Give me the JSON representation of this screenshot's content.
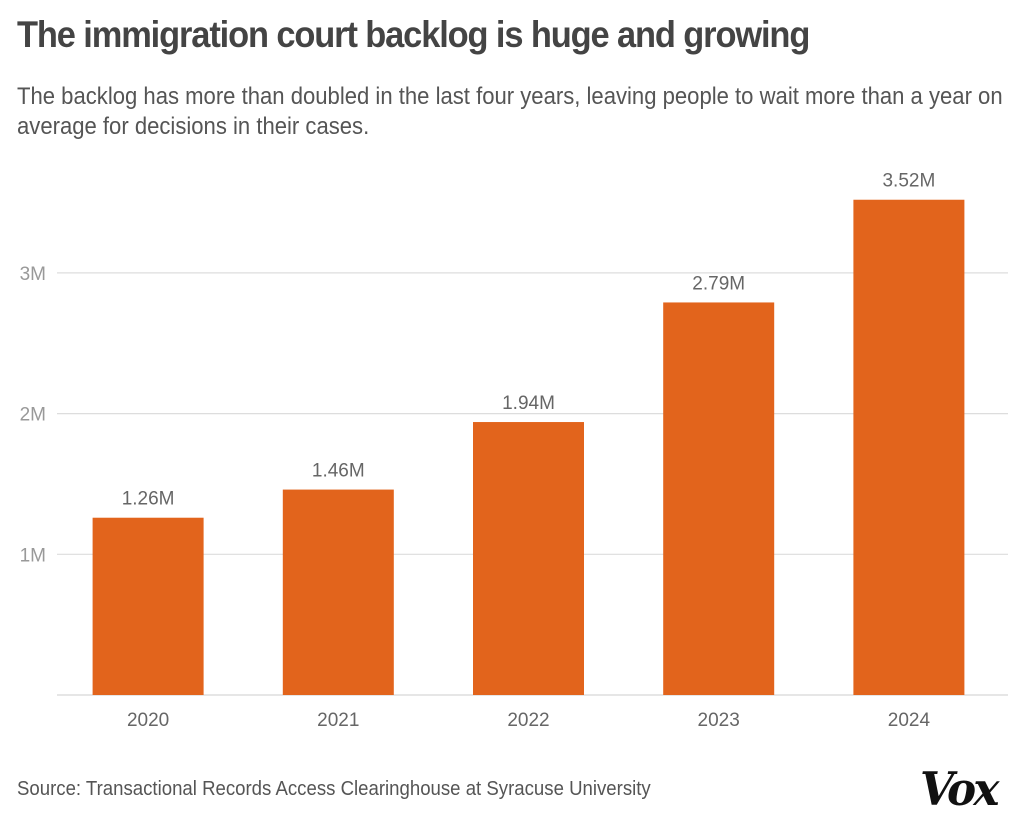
{
  "header": {
    "title": "The immigration court backlog is huge and growing",
    "subtitle": "The backlog has more than doubled in the last four years, leaving people to wait more than a year on average for decisions in their cases."
  },
  "footer": {
    "source": "Source: Transactional Records Access Clearinghouse at Syracuse University",
    "logo": "Vox"
  },
  "colors": {
    "bar": "#E2641C",
    "grid": "#DDDDDD",
    "tick_text": "#999999",
    "label_text": "#666666"
  },
  "chart_data": {
    "type": "bar",
    "title": "The immigration court backlog is huge and growing",
    "subtitle": "The backlog has more than doubled in the last four years, leaving people to wait more than a year on average for decisions in their cases.",
    "xlabel": "",
    "ylabel": "",
    "categories": [
      "2020",
      "2021",
      "2022",
      "2023",
      "2024"
    ],
    "values": [
      1.26,
      1.46,
      1.94,
      2.79,
      3.52
    ],
    "value_labels": [
      "1.26M",
      "1.46M",
      "1.94M",
      "2.79M",
      "3.52M"
    ],
    "unit": "millions of cases",
    "yticks": [
      1,
      2,
      3
    ],
    "ytick_labels": [
      "1M",
      "2M",
      "3M"
    ],
    "ylim": [
      0,
      3.7
    ],
    "grid": true,
    "legend": "none",
    "source": "Source: Transactional Records Access Clearinghouse at Syracuse University"
  }
}
